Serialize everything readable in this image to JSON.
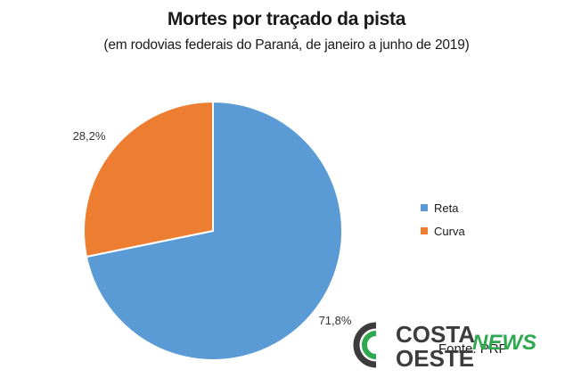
{
  "chart_data": {
    "type": "pie",
    "title": "Mortes por traçado da pista",
    "subtitle": "(em rodovias federais do Paraná, de janeiro a junho de 2019)",
    "categories": [
      "Reta",
      "Curva"
    ],
    "values": [
      71.8,
      28.2
    ],
    "data_labels": [
      "71,8%",
      "28,2%"
    ],
    "colors": [
      "#5b9bd5",
      "#ed7d31"
    ],
    "legend_position": "right"
  },
  "source": "Fonte: PRF",
  "logo": {
    "line1": "COSTA",
    "line2": "OESTE",
    "badge": "NEWS",
    "colors": {
      "dark": "#3c3c3c",
      "green": "#2fa84f"
    }
  }
}
